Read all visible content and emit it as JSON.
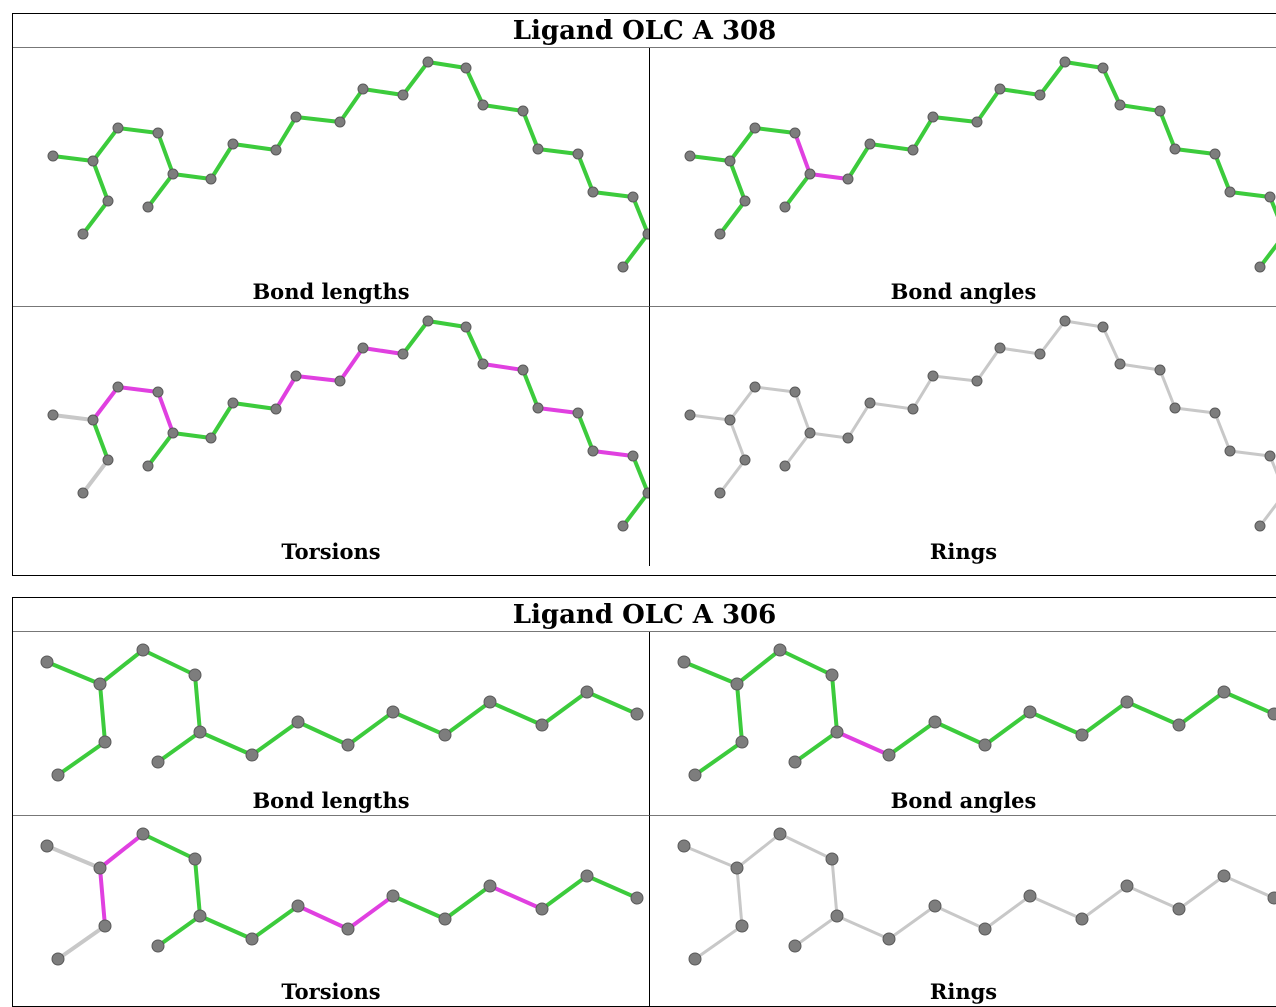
{
  "colors": {
    "fit_ok": "#3ccb3c",
    "fit_outlier": "#e040e0",
    "no_data": "#c8c8c8",
    "atom": "#7d7d7d"
  },
  "panels": [
    {
      "title": "Ligand OLC A 308",
      "views": [
        {
          "caption": "Bond lengths",
          "variant": "a308",
          "scheme": "lengths"
        },
        {
          "caption": "Bond angles",
          "variant": "a308",
          "scheme": "angles"
        },
        {
          "caption": "Torsions",
          "variant": "a308",
          "scheme": "torsions"
        },
        {
          "caption": "Rings",
          "variant": "a308",
          "scheme": "rings"
        }
      ]
    },
    {
      "title": "Ligand OLC A 306",
      "views": [
        {
          "caption": "Bond lengths",
          "variant": "a306",
          "scheme": "lengths"
        },
        {
          "caption": "Bond angles",
          "variant": "a306",
          "scheme": "angles"
        },
        {
          "caption": "Torsions",
          "variant": "a306",
          "scheme": "torsions"
        },
        {
          "caption": "Rings",
          "variant": "a306",
          "scheme": "rings"
        }
      ]
    }
  ]
}
